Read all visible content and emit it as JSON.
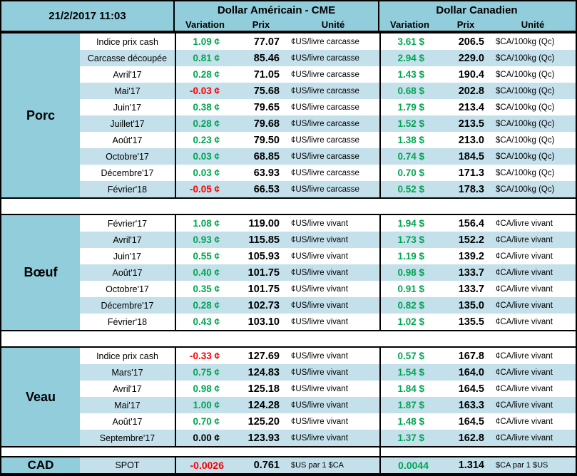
{
  "meta": {
    "timestamp": "21/2/2017 11:03"
  },
  "colors": {
    "green": "#00A651",
    "red": "#FF0000",
    "black": "#000000",
    "header_blue": "#92CDDC",
    "row_alt_blue": "#C3E0EB"
  },
  "header": {
    "us": {
      "title": "Dollar Américain - CME",
      "cols": [
        "Variation",
        "Prix",
        "Unité"
      ]
    },
    "ca": {
      "title": "Dollar Canadien",
      "cols": [
        "Variation",
        "Prix",
        "Unité"
      ]
    }
  },
  "sections": [
    {
      "name": "Porc",
      "us_unit": "¢US/livre carcasse",
      "ca_unit": "$CA/100kg (Qc)",
      "rows": [
        {
          "label": "Indice prix cash",
          "us_var": "1.09 ¢",
          "us_var_color": "green",
          "us_prix": "77.07",
          "ca_var": "3.61 $",
          "ca_var_color": "green",
          "ca_prix": "206.5"
        },
        {
          "label": "Carcasse découpée",
          "us_var": "0.81 ¢",
          "us_var_color": "green",
          "us_prix": "85.46",
          "ca_var": "2.94 $",
          "ca_var_color": "green",
          "ca_prix": "229.0"
        },
        {
          "label": "Avril'17",
          "us_var": "0.28 ¢",
          "us_var_color": "green",
          "us_prix": "71.05",
          "ca_var": "1.43 $",
          "ca_var_color": "green",
          "ca_prix": "190.4"
        },
        {
          "label": "Mai'17",
          "us_var": "-0.03 ¢",
          "us_var_color": "red",
          "us_prix": "75.68",
          "ca_var": "0.68 $",
          "ca_var_color": "green",
          "ca_prix": "202.8"
        },
        {
          "label": "Juin'17",
          "us_var": "0.38 ¢",
          "us_var_color": "green",
          "us_prix": "79.65",
          "ca_var": "1.79 $",
          "ca_var_color": "green",
          "ca_prix": "213.4"
        },
        {
          "label": "Juillet'17",
          "us_var": "0.28 ¢",
          "us_var_color": "green",
          "us_prix": "79.68",
          "ca_var": "1.52 $",
          "ca_var_color": "green",
          "ca_prix": "213.5"
        },
        {
          "label": "Août'17",
          "us_var": "0.23 ¢",
          "us_var_color": "green",
          "us_prix": "79.50",
          "ca_var": "1.38 $",
          "ca_var_color": "green",
          "ca_prix": "213.0"
        },
        {
          "label": "Octobre'17",
          "us_var": "0.03 ¢",
          "us_var_color": "green",
          "us_prix": "68.85",
          "ca_var": "0.74 $",
          "ca_var_color": "green",
          "ca_prix": "184.5"
        },
        {
          "label": "Décembre'17",
          "us_var": "0.03 ¢",
          "us_var_color": "green",
          "us_prix": "63.93",
          "ca_var": "0.70 $",
          "ca_var_color": "green",
          "ca_prix": "171.3"
        },
        {
          "label": "Février'18",
          "us_var": "-0.05 ¢",
          "us_var_color": "red",
          "us_prix": "66.53",
          "ca_var": "0.52 $",
          "ca_var_color": "green",
          "ca_prix": "178.3"
        }
      ]
    },
    {
      "name": "Bœuf",
      "us_unit": "¢US/livre vivant",
      "ca_unit": "¢CA/livre vivant",
      "rows": [
        {
          "label": "Février'17",
          "us_var": "1.08 ¢",
          "us_var_color": "green",
          "us_prix": "119.00",
          "ca_var": "1.94 $",
          "ca_var_color": "green",
          "ca_prix": "156.4"
        },
        {
          "label": "Avril'17",
          "us_var": "0.93 ¢",
          "us_var_color": "green",
          "us_prix": "115.85",
          "ca_var": "1.73 $",
          "ca_var_color": "green",
          "ca_prix": "152.2"
        },
        {
          "label": "Juin'17",
          "us_var": "0.55 ¢",
          "us_var_color": "green",
          "us_prix": "105.93",
          "ca_var": "1.19 $",
          "ca_var_color": "green",
          "ca_prix": "139.2"
        },
        {
          "label": "Août'17",
          "us_var": "0.40 ¢",
          "us_var_color": "green",
          "us_prix": "101.75",
          "ca_var": "0.98 $",
          "ca_var_color": "green",
          "ca_prix": "133.7"
        },
        {
          "label": "Octobre'17",
          "us_var": "0.35 ¢",
          "us_var_color": "green",
          "us_prix": "101.75",
          "ca_var": "0.91 $",
          "ca_var_color": "green",
          "ca_prix": "133.7"
        },
        {
          "label": "Décembre'17",
          "us_var": "0.28 ¢",
          "us_var_color": "green",
          "us_prix": "102.73",
          "ca_var": "0.82 $",
          "ca_var_color": "green",
          "ca_prix": "135.0"
        },
        {
          "label": "Février'18",
          "us_var": "0.43 ¢",
          "us_var_color": "green",
          "us_prix": "103.10",
          "ca_var": "1.02 $",
          "ca_var_color": "green",
          "ca_prix": "135.5"
        }
      ]
    },
    {
      "name": "Veau",
      "us_unit": "¢US/livre vivant",
      "ca_unit": "¢CA/livre vivant",
      "rows": [
        {
          "label": "Indice prix cash",
          "us_var": "-0.33 ¢",
          "us_var_color": "red",
          "us_prix": "127.69",
          "ca_var": "0.57 $",
          "ca_var_color": "green",
          "ca_prix": "167.8"
        },
        {
          "label": "Mars'17",
          "us_var": "0.75 ¢",
          "us_var_color": "green",
          "us_prix": "124.83",
          "ca_var": "1.54 $",
          "ca_var_color": "green",
          "ca_prix": "164.0"
        },
        {
          "label": "Avril'17",
          "us_var": "0.98 ¢",
          "us_var_color": "green",
          "us_prix": "125.18",
          "ca_var": "1.84 $",
          "ca_var_color": "green",
          "ca_prix": "164.5"
        },
        {
          "label": "Mai'17",
          "us_var": "1.00 ¢",
          "us_var_color": "green",
          "us_prix": "124.28",
          "ca_var": "1.87 $",
          "ca_var_color": "green",
          "ca_prix": "163.3"
        },
        {
          "label": "Août'17",
          "us_var": "0.70 ¢",
          "us_var_color": "green",
          "us_prix": "125.20",
          "ca_var": "1.48 $",
          "ca_var_color": "green",
          "ca_prix": "164.5"
        },
        {
          "label": "Septembre'17",
          "us_var": "0.00 ¢",
          "us_var_color": "black",
          "us_prix": "123.93",
          "ca_var": "1.37 $",
          "ca_var_color": "green",
          "ca_prix": "162.8"
        }
      ]
    }
  ],
  "cad": {
    "name": "CAD",
    "label": "SPOT",
    "us_var": "-0.0026",
    "us_var_color": "red",
    "us_prix": "0.761",
    "us_unit": "$US par 1 $CA",
    "ca_var": "0.0044",
    "ca_var_color": "green",
    "ca_prix": "1.314",
    "ca_unit": "$CA par 1 $US"
  }
}
